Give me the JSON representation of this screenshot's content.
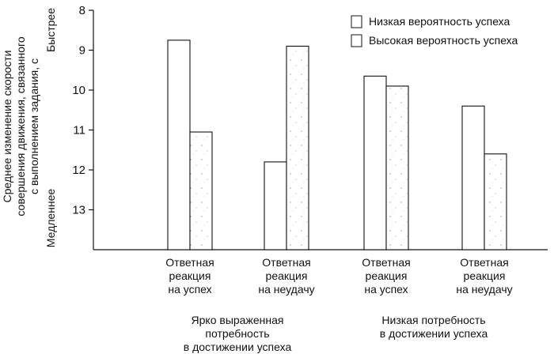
{
  "chart_data": {
    "type": "bar",
    "ylabel": "Среднее изменение скорости совершения движения, связанного с выполнением задания, с",
    "ylabel_lines": [
      "Среднее изменение скорости",
      "совершения движения, связанного",
      "с выполнением задания, с"
    ],
    "y_top_label": "Быстрее",
    "y_bottom_label": "Медленнее",
    "ylim": [
      8,
      14
    ],
    "y_inverted": true,
    "yticks": [
      8,
      9,
      10,
      11,
      12,
      13
    ],
    "categories": [
      "Ответная реакция на успех",
      "Ответная реакция на неудачу",
      "Ответная реакция на успех",
      "Ответная реакция на неудачу"
    ],
    "category_lines": [
      [
        "Ответная",
        "реакция",
        "на успех"
      ],
      [
        "Ответная",
        "реакция",
        "на неудачу"
      ],
      [
        "Ответная",
        "реакция",
        "на успех"
      ],
      [
        "Ответная",
        "реакция",
        "на неудачу"
      ]
    ],
    "groups": [
      {
        "label": "Ярко выраженная потребность в достижении успеха",
        "lines": [
          "Ярко выраженная",
          "потребность",
          "в достижении успеха"
        ]
      },
      {
        "label": "Низкая потребность в достижении успеха",
        "lines": [
          "Низкая потребность",
          "в достижении успеха"
        ]
      }
    ],
    "series": [
      {
        "name": "Низкая вероятность успеха",
        "values": [
          8.75,
          11.8,
          9.65,
          10.4
        ]
      },
      {
        "name": "Высокая вероятность успеха",
        "values": [
          11.05,
          8.9,
          9.9,
          11.6
        ]
      }
    ],
    "legend_position": "top-right"
  }
}
